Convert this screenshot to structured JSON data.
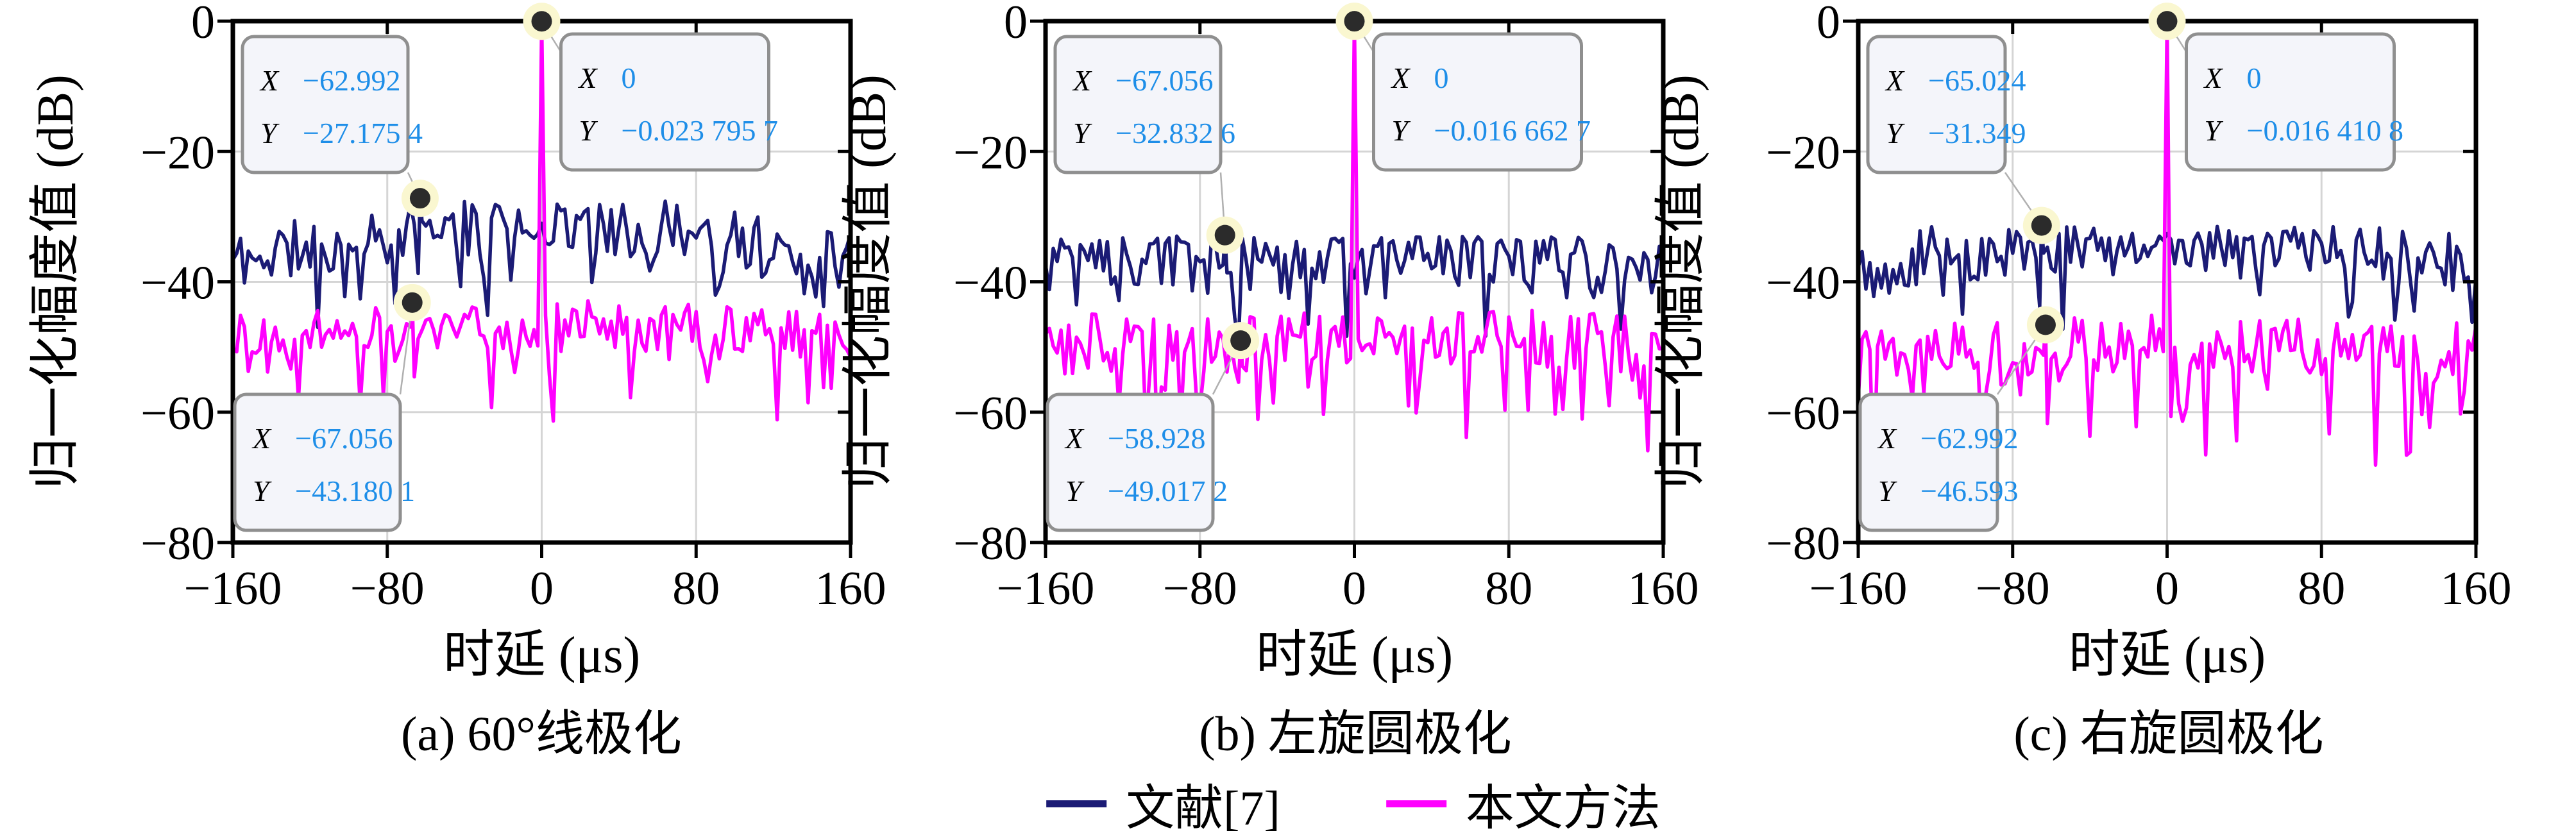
{
  "figure": {
    "ylabel": "归一化幅度值 (dB)",
    "xlabel": "时延 (μs)",
    "xtick_labels": [
      "−160",
      "−80",
      "0",
      "80",
      "160"
    ],
    "xtick_values": [
      -160,
      -80,
      0,
      80,
      160
    ],
    "ytick_labels": [
      "0",
      "−20",
      "−40",
      "−60",
      "−80"
    ],
    "ytick_values": [
      0,
      -20,
      -40,
      -60,
      -80
    ],
    "xlim": [
      -160,
      160
    ],
    "ylim": [
      -80,
      0
    ],
    "grid": true,
    "colors": {
      "reference_line": "#1b1b75",
      "proposed_line": "#ff00ff",
      "gridline": "#d5d5d5",
      "axis": "#000000",
      "datatip_value": "#1e8ee8",
      "datatip_label": "#000000",
      "datatip_bg": "#f4f5fa",
      "datatip_border": "#8f8f8f",
      "leader_line": "#b0b0b0",
      "marker_dot": "#2b2b2b",
      "marker_halo": "#faf7d0"
    }
  },
  "legend": {
    "items": [
      {
        "label": "文献[7]",
        "color": "#1b1b75",
        "role": "reference"
      },
      {
        "label": "本文方法",
        "color": "#ff00ff",
        "role": "proposed"
      }
    ],
    "position": "bottom-center"
  },
  "chart_data": [
    {
      "type": "line",
      "caption": "(a) 60°线极化",
      "xlabel": "时延 (μs)",
      "ylabel": "归一化幅度值 (dB)",
      "xlim": [
        -160,
        160
      ],
      "ylim": [
        -80,
        0
      ],
      "series": [
        {
          "name": "文献[7]",
          "role": "reference",
          "noise_base": -37,
          "arch": 6,
          "spread": 9,
          "dip_chance": 0.2,
          "dip_depth": 10,
          "max": -27.6,
          "seed": 11,
          "keypoint": {
            "x": -62.992,
            "y": -27.1754
          }
        },
        {
          "name": "本文方法",
          "role": "proposed",
          "noise_base": -48.5,
          "arch": 2,
          "spread": 8,
          "dip_chance": 0.25,
          "dip_depth": 12,
          "max": -40.5,
          "seed": 22,
          "keypoint": {
            "x": -67.056,
            "y": -43.1801
          },
          "peak": {
            "x": 0,
            "y": -0.0237957
          }
        }
      ],
      "datatips": [
        {
          "x_label": "X",
          "x_value": "−62.992",
          "y_label": "Y",
          "y_value": "−27.175 4",
          "anchor": {
            "x": -62.992,
            "y": -27.1754
          },
          "pos": "top-left"
        },
        {
          "x_label": "X",
          "x_value": "0",
          "y_label": "Y",
          "y_value": "−0.023 795 7",
          "anchor": {
            "x": 0,
            "y": -0.0237957
          },
          "pos": "peak-right"
        },
        {
          "x_label": "X",
          "x_value": "−67.056",
          "y_label": "Y",
          "y_value": "−43.180 1",
          "anchor": {
            "x": -67.056,
            "y": -43.1801
          },
          "pos": "bottom-left"
        }
      ]
    },
    {
      "type": "line",
      "caption": "(b) 左旋圆极化",
      "xlabel": "时延 (μs)",
      "ylabel": "归一化幅度值 (dB)",
      "xlim": [
        -160,
        160
      ],
      "ylim": [
        -80,
        0
      ],
      "series": [
        {
          "name": "文献[7]",
          "role": "reference",
          "noise_base": -38,
          "arch": 3,
          "spread": 9,
          "dip_chance": 0.2,
          "dip_depth": 10,
          "max": -32.9,
          "seed": 33,
          "keypoint": {
            "x": -67.056,
            "y": -32.8326
          }
        },
        {
          "name": "本文方法",
          "role": "proposed",
          "noise_base": -50,
          "arch": 2,
          "spread": 9,
          "dip_chance": 0.25,
          "dip_depth": 14,
          "max": -43,
          "seed": 44,
          "keypoint": {
            "x": -58.928,
            "y": -49.0172
          },
          "peak": {
            "x": 0,
            "y": -0.0166627
          }
        }
      ],
      "datatips": [
        {
          "x_label": "X",
          "x_value": "−67.056",
          "y_label": "Y",
          "y_value": "−32.832 6",
          "anchor": {
            "x": -67.056,
            "y": -32.8326
          },
          "pos": "top-left"
        },
        {
          "x_label": "X",
          "x_value": "0",
          "y_label": "Y",
          "y_value": "−0.016 662 7",
          "anchor": {
            "x": 0,
            "y": -0.0166627
          },
          "pos": "peak-right"
        },
        {
          "x_label": "X",
          "x_value": "−58.928",
          "y_label": "Y",
          "y_value": "−49.017 2",
          "anchor": {
            "x": -58.928,
            "y": -49.0172
          },
          "pos": "bottom-left"
        }
      ]
    },
    {
      "type": "line",
      "caption": "(c) 右旋圆极化",
      "xlabel": "时延 (μs)",
      "ylabel": "归一化幅度值 (dB)",
      "xlim": [
        -160,
        160
      ],
      "ylim": [
        -80,
        0
      ],
      "series": [
        {
          "name": "文献[7]",
          "role": "reference",
          "noise_base": -37.5,
          "arch": 4,
          "spread": 9,
          "dip_chance": 0.2,
          "dip_depth": 9,
          "max": -31.5,
          "seed": 55,
          "keypoint": {
            "x": -65.024,
            "y": -31.349
          }
        },
        {
          "name": "本文方法",
          "role": "proposed",
          "noise_base": -51,
          "arch": 1.5,
          "spread": 9,
          "dip_chance": 0.25,
          "dip_depth": 16,
          "max": -43.5,
          "seed": 66,
          "keypoint": {
            "x": -62.992,
            "y": -46.593
          },
          "peak": {
            "x": 0,
            "y": -0.0164108
          }
        }
      ],
      "datatips": [
        {
          "x_label": "X",
          "x_value": "−65.024",
          "y_label": "Y",
          "y_value": "−31.349",
          "anchor": {
            "x": -65.024,
            "y": -31.349
          },
          "pos": "top-left"
        },
        {
          "x_label": "X",
          "x_value": "0",
          "y_label": "Y",
          "y_value": "−0.016 410 8",
          "anchor": {
            "x": 0,
            "y": -0.0164108
          },
          "pos": "peak-right"
        },
        {
          "x_label": "X",
          "x_value": "−62.992",
          "y_label": "Y",
          "y_value": "−46.593",
          "anchor": {
            "x": -62.992,
            "y": -46.593
          },
          "pos": "bottom-left"
        }
      ]
    }
  ]
}
